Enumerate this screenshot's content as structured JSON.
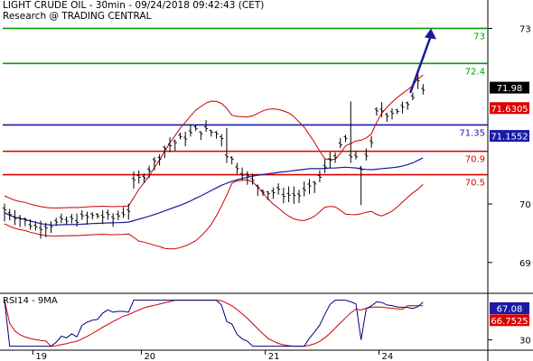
{
  "header": {
    "title": "LIGHT CRUDE OIL - 30min - 09/24/2018 09:42:43 (CET)",
    "source": "Research @ TRADING CENTRAL"
  },
  "colors": {
    "price": "#000000",
    "bollinger": "#cc0000",
    "moving_average": "#1a1a9e",
    "support": "#dd0000",
    "resistance": "#00a000",
    "pivot": "#1a1aaa",
    "arrow": "#1a1a9e",
    "rsi": "#000080",
    "rsi_ma": "#cc0000",
    "label_black": "#000000",
    "label_red": "#dd0000",
    "label_blue": "#1a1aaa"
  },
  "chart_data": [
    {
      "type": "line",
      "subtype": "ohlc-bars",
      "ylim": [
        68.55,
        73.3
      ],
      "y_ticks": [
        69,
        70,
        73
      ],
      "x_labels": [
        "19",
        "20",
        "21",
        "24"
      ],
      "series": [],
      "levels": [
        {
          "value": 73,
          "label": "73",
          "kind": "resistance"
        },
        {
          "value": 72.4,
          "label": "72.4",
          "kind": "resistance"
        },
        {
          "value": 71.35,
          "label": "71.35",
          "kind": "pivot"
        },
        {
          "value": 70.9,
          "label": "70.9",
          "kind": "support"
        },
        {
          "value": 70.5,
          "label": "70.5",
          "kind": "support"
        }
      ],
      "value_tags": [
        {
          "value": 71.98,
          "label": "71.98",
          "kind": "black"
        },
        {
          "value": 71.6305,
          "label": "71.6305",
          "kind": "red"
        },
        {
          "value": 71.1552,
          "label": "71.1552",
          "kind": "blue"
        }
      ],
      "arrow": {
        "from": [
          78,
          71.9
        ],
        "to": [
          82,
          73
        ]
      },
      "price_points": [
        [
          0,
          69.9
        ],
        [
          3,
          69.75
        ],
        [
          6,
          69.6
        ],
        [
          9,
          69.65
        ],
        [
          12,
          69.7
        ],
        [
          15,
          69.75
        ],
        [
          18,
          69.8
        ],
        [
          21,
          69.75
        ],
        [
          24,
          69.9
        ],
        [
          25,
          70.35
        ],
        [
          27,
          70.5
        ],
        [
          29,
          70.7
        ],
        [
          31,
          70.95
        ],
        [
          33,
          71.05
        ],
        [
          35,
          71.15
        ],
        [
          37,
          71.25
        ],
        [
          39,
          71.25
        ],
        [
          41,
          71.2
        ],
        [
          42,
          71.15
        ],
        [
          43,
          70.85
        ],
        [
          45,
          70.65
        ],
        [
          47,
          70.45
        ],
        [
          49,
          70.3
        ],
        [
          51,
          70.2
        ],
        [
          53,
          70.2
        ],
        [
          55,
          70.15
        ],
        [
          57,
          70.15
        ],
        [
          59,
          70.25
        ],
        [
          61,
          70.45
        ],
        [
          63,
          70.75
        ],
        [
          65,
          70.95
        ],
        [
          66,
          71.1
        ],
        [
          67,
          70.8
        ],
        [
          68,
          70.75
        ],
        [
          69,
          70.6
        ],
        [
          70,
          70.85
        ],
        [
          71,
          71.0
        ],
        [
          72,
          71.55
        ],
        [
          73,
          71.6
        ],
        [
          74,
          71.55
        ],
        [
          76,
          71.6
        ],
        [
          78,
          71.65
        ],
        [
          79,
          71.85
        ],
        [
          80,
          72.15
        ],
        [
          81,
          72.0
        ]
      ]
    },
    {
      "type": "line",
      "title": "RSI14 - 9MA",
      "ylim": [
        17,
        83
      ],
      "value_tags": [
        {
          "value": 67.08,
          "label": "67.08",
          "kind": "blue"
        },
        {
          "value": 66.7525,
          "label": "66.7525",
          "kind": "red"
        }
      ],
      "y_ticks": [
        30
      ],
      "series": []
    }
  ]
}
